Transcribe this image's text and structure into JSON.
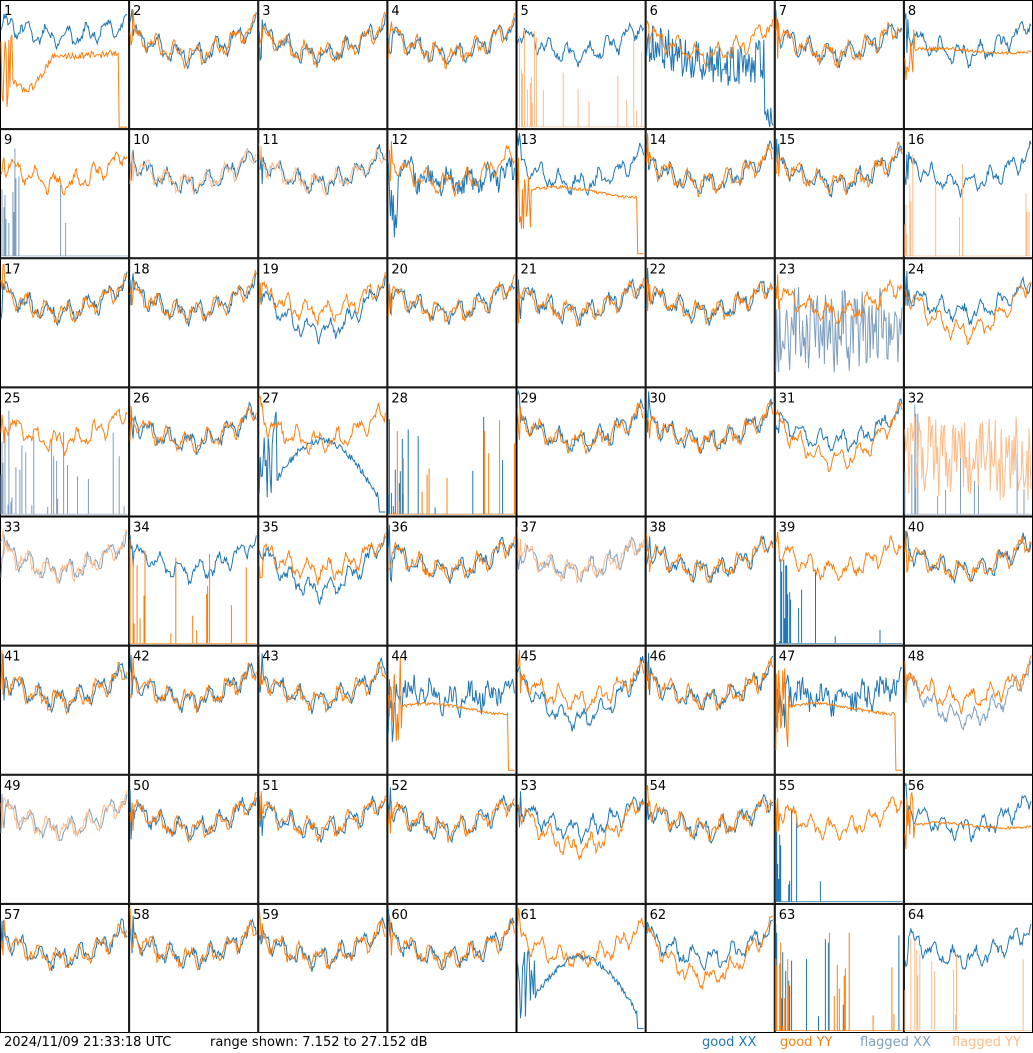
{
  "footer": {
    "timestamp": "2024/11/09 21:33:18 UTC",
    "range_text": "range shown: 7.152 to 27.152 dB",
    "legend": {
      "good_xx": "good XX",
      "good_yy": "good YY",
      "flagged_xx": "flagged XX",
      "flagged_yy": "flagged YY"
    }
  },
  "colors": {
    "good_xx": "#1f77b4",
    "good_yy": "#ff7f0e",
    "flagged_xx": "#7f9fbf",
    "flagged_yy": "#ffbb88"
  },
  "chart_data": {
    "type": "line",
    "ylim": [
      7.152,
      27.152
    ],
    "grid_rows": 8,
    "grid_cols": 8,
    "panels": [
      {
        "id": "1",
        "xx": "good-wavy-high",
        "yy": "good-hump-drop"
      },
      {
        "id": "2",
        "xx": "good-wavy",
        "yy": "good-wavy"
      },
      {
        "id": "3",
        "xx": "good-wavy",
        "yy": "good-wavy"
      },
      {
        "id": "4",
        "xx": "good-wavy",
        "yy": "good-wavy"
      },
      {
        "id": "5",
        "xx": "good-wavy",
        "yy": "flagged-spikes"
      },
      {
        "id": "6",
        "xx": "good-noisy-low",
        "yy": "good-wavy"
      },
      {
        "id": "7",
        "xx": "good-wavy",
        "yy": "good-wavy"
      },
      {
        "id": "8",
        "xx": "good-wavy",
        "yy": "good-flat"
      },
      {
        "id": "9",
        "xx": "flagged-spikes",
        "yy": "good-wavy"
      },
      {
        "id": "10",
        "xx": "good-wavy",
        "yy": "flagged-wavy"
      },
      {
        "id": "11",
        "xx": "good-wavy",
        "yy": "flagged-wavy"
      },
      {
        "id": "12",
        "xx": "good-noisy",
        "yy": "good-wavy"
      },
      {
        "id": "13",
        "xx": "good-wavy",
        "yy": "good-flat-drop"
      },
      {
        "id": "14",
        "xx": "good-wavy",
        "yy": "good-wavy"
      },
      {
        "id": "15",
        "xx": "good-wavy",
        "yy": "good-wavy"
      },
      {
        "id": "16",
        "xx": "good-wavy",
        "yy": "flagged-spikes"
      },
      {
        "id": "17",
        "xx": "good-wavy",
        "yy": "good-wavy"
      },
      {
        "id": "18",
        "xx": "good-wavy",
        "yy": "good-wavy"
      },
      {
        "id": "19",
        "xx": "good-wavy-deep",
        "yy": "good-wavy"
      },
      {
        "id": "20",
        "xx": "good-wavy",
        "yy": "good-wavy"
      },
      {
        "id": "21",
        "xx": "good-wavy",
        "yy": "good-wavy"
      },
      {
        "id": "22",
        "xx": "good-wavy",
        "yy": "good-wavy"
      },
      {
        "id": "23",
        "xx": "flagged-noisy",
        "yy": "good-wavy"
      },
      {
        "id": "24",
        "xx": "good-wavy",
        "yy": "good-wavy-deep"
      },
      {
        "id": "25",
        "xx": "flagged-spikes",
        "yy": "good-wavy"
      },
      {
        "id": "26",
        "xx": "good-wavy",
        "yy": "good-wavy"
      },
      {
        "id": "27",
        "xx": "good-hump-low",
        "yy": "good-wavy"
      },
      {
        "id": "28",
        "xx": "good-spikes",
        "yy": "good-spikes"
      },
      {
        "id": "29",
        "xx": "good-wavy",
        "yy": "good-wavy"
      },
      {
        "id": "30",
        "xx": "good-wavy",
        "yy": "good-wavy"
      },
      {
        "id": "31",
        "xx": "good-wavy",
        "yy": "good-wavy-deep"
      },
      {
        "id": "32",
        "xx": "flagged-spikes",
        "yy": "flagged-noisy"
      },
      {
        "id": "33",
        "xx": "flagged-wavy",
        "yy": "flagged-wavy"
      },
      {
        "id": "34",
        "xx": "good-wavy",
        "yy": "good-spikes"
      },
      {
        "id": "35",
        "xx": "good-wavy-deep",
        "yy": "good-wavy"
      },
      {
        "id": "36",
        "xx": "good-wavy",
        "yy": "good-wavy"
      },
      {
        "id": "37",
        "xx": "flagged-wavy",
        "yy": "flagged-wavy"
      },
      {
        "id": "38",
        "xx": "good-wavy",
        "yy": "good-wavy"
      },
      {
        "id": "39",
        "xx": "good-spikes",
        "yy": "good-wavy"
      },
      {
        "id": "40",
        "xx": "good-wavy",
        "yy": "good-wavy"
      },
      {
        "id": "41",
        "xx": "good-wavy",
        "yy": "good-wavy"
      },
      {
        "id": "42",
        "xx": "good-wavy",
        "yy": "good-wavy"
      },
      {
        "id": "43",
        "xx": "good-wavy",
        "yy": "good-wavy"
      },
      {
        "id": "44",
        "xx": "good-noisy",
        "yy": "good-flat-drop"
      },
      {
        "id": "45",
        "xx": "good-wavy-deep",
        "yy": "good-wavy"
      },
      {
        "id": "46",
        "xx": "good-wavy",
        "yy": "good-wavy"
      },
      {
        "id": "47",
        "xx": "good-noisy",
        "yy": "good-flat-drop"
      },
      {
        "id": "48",
        "xx": "flagged-wavy-deep",
        "yy": "good-wavy"
      },
      {
        "id": "49",
        "xx": "flagged-wavy",
        "yy": "flagged-wavy"
      },
      {
        "id": "50",
        "xx": "good-wavy",
        "yy": "good-wavy"
      },
      {
        "id": "51",
        "xx": "good-wavy",
        "yy": "good-wavy"
      },
      {
        "id": "52",
        "xx": "good-wavy",
        "yy": "good-wavy"
      },
      {
        "id": "53",
        "xx": "good-wavy",
        "yy": "good-wavy-deep"
      },
      {
        "id": "54",
        "xx": "good-wavy",
        "yy": "good-wavy"
      },
      {
        "id": "55",
        "xx": "good-spikes",
        "yy": "good-wavy"
      },
      {
        "id": "56",
        "xx": "good-wavy",
        "yy": "good-flat"
      },
      {
        "id": "57",
        "xx": "good-wavy",
        "yy": "good-wavy"
      },
      {
        "id": "58",
        "xx": "good-wavy",
        "yy": "good-wavy"
      },
      {
        "id": "59",
        "xx": "good-wavy",
        "yy": "good-wavy"
      },
      {
        "id": "60",
        "xx": "good-wavy",
        "yy": "good-wavy"
      },
      {
        "id": "61",
        "xx": "good-hump-low",
        "yy": "good-wavy"
      },
      {
        "id": "62",
        "xx": "good-wavy",
        "yy": "good-wavy-deep"
      },
      {
        "id": "63",
        "xx": "good-spikes",
        "yy": "good-spikes"
      },
      {
        "id": "64",
        "xx": "good-wavy",
        "yy": "flagged-spikes"
      }
    ]
  }
}
